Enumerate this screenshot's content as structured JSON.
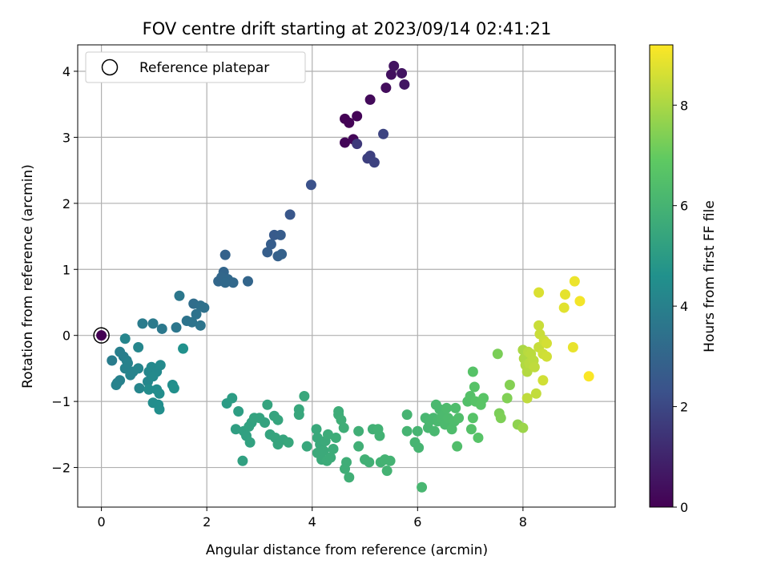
{
  "chart_data": {
    "type": "scatter",
    "title": "FOV centre drift starting at 2023/09/14 02:41:21",
    "xlabel": "Angular distance from reference (arcmin)",
    "ylabel": "Rotation from reference (arcmin)",
    "xlim": [
      -0.45,
      9.75
    ],
    "ylim": [
      -2.6,
      4.4
    ],
    "xticks": [
      0,
      2,
      4,
      6,
      8
    ],
    "yticks": [
      -2,
      -1,
      0,
      1,
      2,
      3,
      4
    ],
    "xtick_labels": [
      "0",
      "2",
      "4",
      "6",
      "8"
    ],
    "ytick_labels": [
      "−2",
      "−1",
      "0",
      "1",
      "2",
      "3",
      "4"
    ],
    "grid": true,
    "colormap": "viridis",
    "colormap_stops": [
      "#440154",
      "#3b528b",
      "#21918c",
      "#5ec962",
      "#fde725"
    ],
    "colorbar": {
      "label": "Hours from first FF file",
      "range": [
        0,
        9.2
      ],
      "ticks": [
        0,
        2,
        4,
        6,
        8
      ],
      "tick_labels": [
        "0",
        "2",
        "4",
        "6",
        "8"
      ]
    },
    "legend": {
      "label": "Reference platepar",
      "position": "top-left",
      "point": [
        0,
        0
      ]
    },
    "points": [
      [
        0.0,
        0.0,
        0.0
      ],
      [
        4.62,
        3.28,
        0.05
      ],
      [
        4.7,
        3.22,
        0.08
      ],
      [
        4.85,
        3.32,
        0.12
      ],
      [
        4.62,
        2.92,
        0.15
      ],
      [
        4.78,
        2.97,
        0.18
      ],
      [
        5.1,
        3.57,
        0.25
      ],
      [
        5.4,
        3.75,
        0.35
      ],
      [
        5.5,
        3.95,
        0.42
      ],
      [
        5.55,
        4.08,
        0.5
      ],
      [
        5.7,
        3.97,
        0.55
      ],
      [
        5.75,
        3.8,
        0.6
      ],
      [
        4.85,
        2.9,
        1.6
      ],
      [
        5.05,
        2.68,
        1.75
      ],
      [
        5.1,
        2.72,
        1.8
      ],
      [
        5.18,
        2.62,
        1.85
      ],
      [
        5.35,
        3.05,
        1.9
      ],
      [
        3.98,
        2.28,
        2.3
      ],
      [
        3.58,
        1.83,
        2.5
      ],
      [
        3.28,
        1.52,
        2.6
      ],
      [
        3.4,
        1.52,
        2.65
      ],
      [
        3.22,
        1.38,
        2.7
      ],
      [
        3.15,
        1.26,
        2.75
      ],
      [
        3.35,
        1.2,
        2.8
      ],
      [
        3.42,
        1.23,
        2.85
      ],
      [
        2.35,
        1.22,
        2.9
      ],
      [
        2.78,
        0.82,
        3.0
      ],
      [
        2.32,
        0.96,
        3.0
      ],
      [
        2.22,
        0.82,
        3.05
      ],
      [
        2.28,
        0.88,
        3.05
      ],
      [
        2.4,
        0.85,
        3.1
      ],
      [
        2.5,
        0.8,
        3.1
      ],
      [
        2.35,
        0.8,
        3.15
      ],
      [
        1.75,
        0.48,
        3.3
      ],
      [
        1.88,
        0.45,
        3.35
      ],
      [
        1.95,
        0.42,
        3.4
      ],
      [
        1.8,
        0.32,
        3.45
      ],
      [
        1.62,
        0.22,
        3.5
      ],
      [
        1.72,
        0.2,
        3.5
      ],
      [
        1.88,
        0.15,
        3.55
      ],
      [
        1.42,
        0.12,
        3.6
      ],
      [
        1.48,
        0.6,
        3.65
      ],
      [
        1.15,
        0.1,
        3.7
      ],
      [
        0.98,
        0.18,
        3.75
      ],
      [
        0.78,
        0.18,
        3.8
      ],
      [
        0.2,
        -0.38,
        3.85
      ],
      [
        0.35,
        -0.25,
        3.9
      ],
      [
        0.42,
        -0.32,
        3.9
      ],
      [
        0.48,
        -0.38,
        3.95
      ],
      [
        0.3,
        -0.72,
        4.0
      ],
      [
        0.35,
        -0.68,
        4.0
      ],
      [
        0.28,
        -0.75,
        4.05
      ],
      [
        0.45,
        -0.5,
        4.05
      ],
      [
        0.5,
        -0.42,
        4.05
      ],
      [
        0.55,
        -0.6,
        4.1
      ],
      [
        0.6,
        -0.55,
        4.1
      ],
      [
        0.7,
        -0.5,
        4.15
      ],
      [
        0.45,
        -0.05,
        4.15
      ],
      [
        0.7,
        -0.18,
        4.2
      ],
      [
        0.72,
        -0.8,
        4.2
      ],
      [
        0.88,
        -0.7,
        4.25
      ],
      [
        0.9,
        -0.55,
        4.25
      ],
      [
        0.95,
        -0.48,
        4.3
      ],
      [
        1.05,
        -0.55,
        4.3
      ],
      [
        1.12,
        -0.45,
        4.35
      ],
      [
        0.98,
        -0.62,
        4.35
      ],
      [
        0.9,
        -0.82,
        4.4
      ],
      [
        1.05,
        -0.82,
        4.4
      ],
      [
        1.1,
        -0.88,
        4.45
      ],
      [
        0.98,
        -1.02,
        4.45
      ],
      [
        1.08,
        -1.05,
        4.5
      ],
      [
        1.1,
        -1.12,
        4.5
      ],
      [
        1.35,
        -0.75,
        4.5
      ],
      [
        1.38,
        -0.8,
        4.55
      ],
      [
        1.55,
        -0.2,
        4.6
      ],
      [
        2.38,
        -1.03,
        5.0
      ],
      [
        2.48,
        -0.95,
        5.05
      ],
      [
        2.6,
        -1.15,
        5.1
      ],
      [
        2.55,
        -1.42,
        5.15
      ],
      [
        2.7,
        -1.45,
        5.2
      ],
      [
        2.68,
        -1.9,
        5.2
      ],
      [
        2.75,
        -1.52,
        5.2
      ],
      [
        2.8,
        -1.38,
        5.25
      ],
      [
        2.85,
        -1.32,
        5.25
      ],
      [
        2.82,
        -1.62,
        5.25
      ],
      [
        2.9,
        -1.25,
        5.3
      ],
      [
        3.0,
        -1.25,
        5.3
      ],
      [
        3.1,
        -1.32,
        5.3
      ],
      [
        3.15,
        -1.05,
        5.35
      ],
      [
        3.2,
        -1.5,
        5.35
      ],
      [
        3.28,
        -1.22,
        5.35
      ],
      [
        3.3,
        -1.55,
        5.4
      ],
      [
        3.35,
        -1.28,
        5.4
      ],
      [
        3.35,
        -1.65,
        5.4
      ],
      [
        3.45,
        -1.58,
        5.4
      ],
      [
        3.55,
        -1.62,
        5.45
      ],
      [
        3.75,
        -1.12,
        5.45
      ],
      [
        3.75,
        -1.2,
        5.45
      ],
      [
        3.85,
        -0.92,
        5.5
      ],
      [
        3.9,
        -1.68,
        5.5
      ],
      [
        4.08,
        -1.42,
        5.55
      ],
      [
        4.1,
        -1.55,
        5.55
      ],
      [
        4.15,
        -1.65,
        5.55
      ],
      [
        4.1,
        -1.78,
        5.6
      ],
      [
        4.18,
        -1.88,
        5.6
      ],
      [
        4.22,
        -1.75,
        5.6
      ],
      [
        4.25,
        -1.6,
        5.6
      ],
      [
        4.28,
        -1.9,
        5.65
      ],
      [
        4.3,
        -1.5,
        5.65
      ],
      [
        4.35,
        -1.85,
        5.65
      ],
      [
        4.4,
        -1.72,
        5.65
      ],
      [
        4.45,
        -1.55,
        5.7
      ],
      [
        4.5,
        -1.2,
        5.7
      ],
      [
        4.5,
        -1.15,
        5.7
      ],
      [
        4.55,
        -1.28,
        5.75
      ],
      [
        4.6,
        -1.4,
        5.75
      ],
      [
        4.62,
        -2.02,
        5.75
      ],
      [
        4.65,
        -1.92,
        5.75
      ],
      [
        4.7,
        -2.15,
        5.8
      ],
      [
        4.88,
        -1.45,
        5.8
      ],
      [
        4.88,
        -1.68,
        5.8
      ],
      [
        5.0,
        -1.88,
        5.85
      ],
      [
        5.08,
        -1.92,
        5.85
      ],
      [
        5.15,
        -1.42,
        5.85
      ],
      [
        5.25,
        -1.42,
        5.9
      ],
      [
        5.28,
        -1.52,
        5.9
      ],
      [
        5.3,
        -1.92,
        5.9
      ],
      [
        5.38,
        -1.88,
        5.95
      ],
      [
        5.42,
        -2.05,
        5.95
      ],
      [
        5.48,
        -1.9,
        5.95
      ],
      [
        5.8,
        -1.2,
        6.0
      ],
      [
        5.8,
        -1.45,
        6.0
      ],
      [
        5.95,
        -1.62,
        6.05
      ],
      [
        6.0,
        -1.45,
        6.05
      ],
      [
        6.02,
        -1.7,
        6.05
      ],
      [
        6.08,
        -2.3,
        6.1
      ],
      [
        6.15,
        -1.25,
        6.1
      ],
      [
        6.2,
        -1.4,
        6.1
      ],
      [
        6.22,
        -1.3,
        6.15
      ],
      [
        6.3,
        -1.25,
        6.15
      ],
      [
        6.32,
        -1.45,
        6.15
      ],
      [
        6.35,
        -1.05,
        6.2
      ],
      [
        6.38,
        -1.3,
        6.2
      ],
      [
        6.42,
        -1.12,
        6.2
      ],
      [
        6.45,
        -1.25,
        6.25
      ],
      [
        6.5,
        -1.2,
        6.25
      ],
      [
        6.52,
        -1.35,
        6.25
      ],
      [
        6.55,
        -1.1,
        6.3
      ],
      [
        6.58,
        -1.25,
        6.3
      ],
      [
        6.65,
        -1.42,
        6.35
      ],
      [
        6.7,
        -1.3,
        6.35
      ],
      [
        6.72,
        -1.1,
        6.35
      ],
      [
        6.75,
        -1.68,
        6.4
      ],
      [
        6.78,
        -1.25,
        6.4
      ],
      [
        6.95,
        -1.0,
        6.5
      ],
      [
        7.0,
        -0.92,
        6.55
      ],
      [
        7.02,
        -1.42,
        6.55
      ],
      [
        7.05,
        -0.55,
        6.6
      ],
      [
        7.08,
        -0.78,
        6.6
      ],
      [
        7.05,
        -1.25,
        6.6
      ],
      [
        7.1,
        -1.0,
        6.65
      ],
      [
        7.15,
        -1.55,
        6.65
      ],
      [
        7.2,
        -1.05,
        6.7
      ],
      [
        7.25,
        -0.95,
        6.7
      ],
      [
        7.52,
        -0.28,
        7.3
      ],
      [
        7.55,
        -1.18,
        7.3
      ],
      [
        7.58,
        -1.25,
        7.35
      ],
      [
        7.7,
        -0.95,
        7.4
      ],
      [
        7.75,
        -0.75,
        7.45
      ],
      [
        7.9,
        -1.35,
        7.6
      ],
      [
        8.0,
        -1.4,
        7.8
      ],
      [
        8.0,
        -0.22,
        8.0
      ],
      [
        8.02,
        -0.35,
        8.05
      ],
      [
        8.05,
        -0.45,
        8.1
      ],
      [
        8.08,
        -0.55,
        8.15
      ],
      [
        8.1,
        -0.25,
        8.2
      ],
      [
        8.12,
        -0.42,
        8.2
      ],
      [
        8.15,
        -0.28,
        8.25
      ],
      [
        8.2,
        -0.38,
        8.25
      ],
      [
        8.22,
        -0.48,
        8.3
      ],
      [
        8.08,
        -0.95,
        8.3
      ],
      [
        8.25,
        -0.88,
        8.35
      ],
      [
        8.3,
        -0.18,
        8.4
      ],
      [
        8.3,
        0.15,
        8.45
      ],
      [
        8.32,
        0.02,
        8.45
      ],
      [
        8.38,
        -0.28,
        8.5
      ],
      [
        8.45,
        -0.32,
        8.55
      ],
      [
        8.4,
        -0.08,
        8.5
      ],
      [
        8.45,
        -0.12,
        8.6
      ],
      [
        8.38,
        -0.68,
        8.55
      ],
      [
        8.3,
        0.65,
        8.7
      ],
      [
        8.78,
        0.42,
        8.8
      ],
      [
        8.8,
        0.62,
        8.85
      ],
      [
        8.95,
        -0.18,
        8.9
      ],
      [
        8.98,
        0.82,
        8.95
      ],
      [
        9.08,
        0.52,
        9.05
      ],
      [
        9.25,
        -0.62,
        9.15
      ]
    ]
  }
}
